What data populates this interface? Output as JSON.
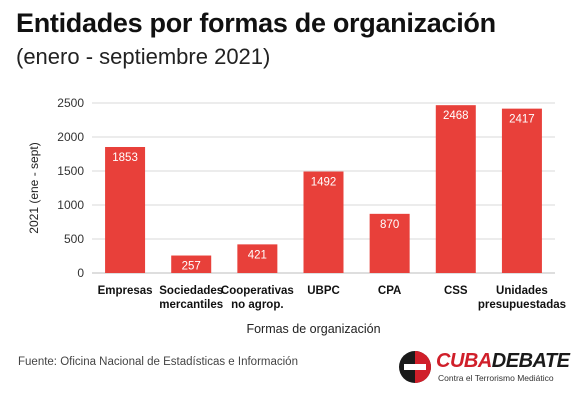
{
  "header": {
    "title": "Entidades por formas de organización",
    "subtitle": "(enero - septiembre 2021)"
  },
  "footer": {
    "source": "Fuente: Oficina Nacional de Estadísticas e Información",
    "logo_text_red": "CUBA",
    "logo_text_dark": "DEBATE",
    "logo_tagline": "Contra el Terrorismo Mediático"
  },
  "colors": {
    "bar": "#e8403a",
    "grid": "#d9d9d9",
    "axis_text": "#333333",
    "data_label": "#ffffff"
  },
  "chart_data": {
    "type": "bar",
    "categories": [
      [
        "Empresas"
      ],
      [
        "Sociedades",
        "mercantiles"
      ],
      [
        "Cooperativas",
        "no agrop."
      ],
      [
        "UBPC"
      ],
      [
        "CPA"
      ],
      [
        "CSS"
      ],
      [
        "Unidades",
        "presupuestadas"
      ]
    ],
    "values": [
      1853,
      257,
      421,
      1492,
      870,
      2468,
      2417
    ],
    "data_labels": [
      "1853",
      "257",
      "421",
      "1492",
      "870",
      "2468",
      "2417"
    ],
    "xlabel": "Formas de organización",
    "ylabel": "2021 (ene - sept)",
    "ylim": [
      0,
      2500
    ],
    "yticks": [
      0,
      500,
      1000,
      1500,
      2000,
      2500
    ],
    "grid": true,
    "legend": "none"
  }
}
